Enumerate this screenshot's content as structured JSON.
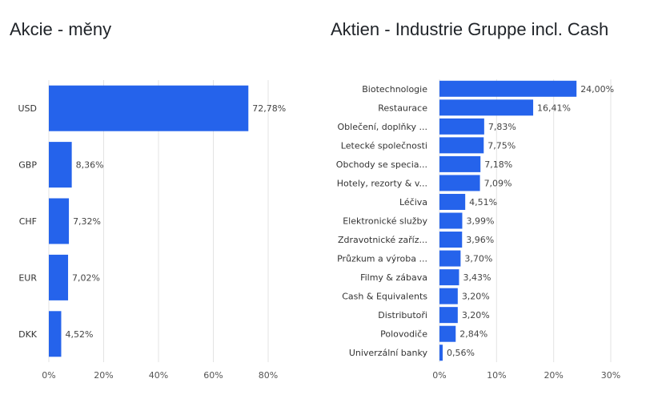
{
  "chart_data": [
    {
      "type": "bar",
      "orientation": "horizontal",
      "title": "Akcie - měny",
      "categories": [
        "USD",
        "GBP",
        "CHF",
        "EUR",
        "DKK"
      ],
      "values": [
        72.78,
        8.36,
        7.32,
        7.02,
        4.52
      ],
      "value_labels": [
        "72,78%",
        "8,36%",
        "7,32%",
        "7,02%",
        "4,52%"
      ],
      "xlim": [
        0,
        80
      ],
      "x_ticks": [
        0,
        20,
        40,
        60,
        80
      ],
      "x_tick_labels": [
        "0%",
        "20%",
        "40%",
        "60%",
        "80%"
      ],
      "grid": true,
      "bar_color": "#2563eb"
    },
    {
      "type": "bar",
      "orientation": "horizontal",
      "title": "Aktien - Industrie Gruppe incl. Cash",
      "categories": [
        "Biotechnologie",
        "Restaurace",
        "Oblečení, doplňky ...",
        "Letecké společnosti",
        "Obchody se specia...",
        "Hotely, rezorty & v...",
        "Léčiva",
        "Elektronické služby",
        "Zdravotnické zaříz...",
        "Průzkum a výroba ...",
        "Filmy & zábava",
        "Cash & Equivalents",
        "Distributoři",
        "Polovodiče",
        "Univerzální banky"
      ],
      "values": [
        24.0,
        16.41,
        7.83,
        7.75,
        7.18,
        7.09,
        4.51,
        3.99,
        3.96,
        3.7,
        3.43,
        3.2,
        3.2,
        2.84,
        0.56
      ],
      "value_labels": [
        "24,00%",
        "16,41%",
        "7,83%",
        "7,75%",
        "7,18%",
        "7,09%",
        "4,51%",
        "3,99%",
        "3,96%",
        "3,70%",
        "3,43%",
        "3,20%",
        "3,20%",
        "2,84%",
        "0,56%"
      ],
      "xlim": [
        0,
        30
      ],
      "x_ticks": [
        0,
        10,
        20,
        30
      ],
      "x_tick_labels": [
        "0%",
        "10%",
        "20%",
        "30%"
      ],
      "grid": true,
      "bar_color": "#2563eb"
    }
  ]
}
